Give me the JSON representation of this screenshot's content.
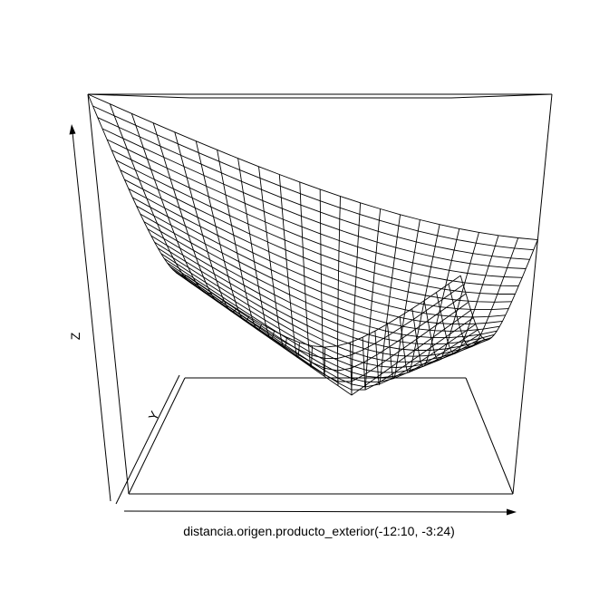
{
  "chart_data": {
    "type": "surface",
    "title": "",
    "xlabel": "distancia.origen.producto_exterior(-12:10, -3:24)",
    "ylabel": "Y",
    "zlabel": "Z",
    "x_grid": [
      -12,
      -11,
      -10,
      -9,
      -8,
      -7,
      -6,
      -5,
      -4,
      -3,
      -2,
      -1,
      0,
      1,
      2,
      3,
      4,
      5,
      6,
      7,
      8,
      9,
      10
    ],
    "y_grid": [
      -3,
      -2,
      -1,
      0,
      1,
      2,
      3,
      4,
      5,
      6,
      7,
      8,
      9,
      10,
      11,
      12,
      13,
      14,
      15,
      16,
      17,
      18,
      19,
      20,
      21,
      22,
      23,
      24
    ],
    "colors": {
      "lines": "#000000",
      "background": "#ffffff"
    }
  }
}
